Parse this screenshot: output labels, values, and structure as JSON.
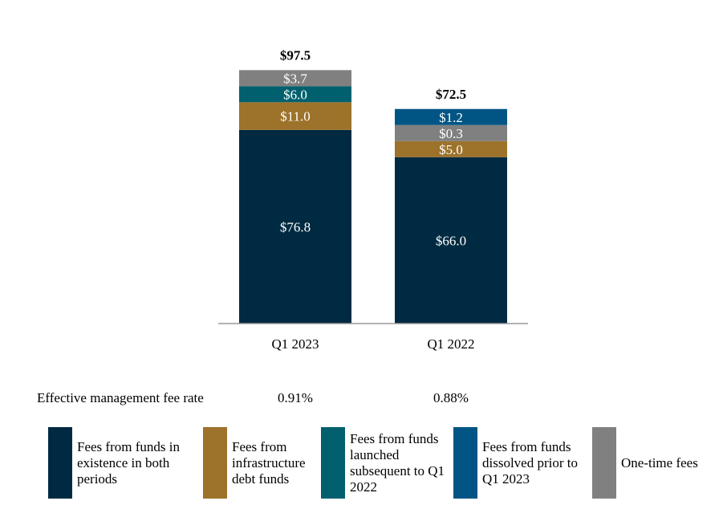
{
  "chart_data": {
    "type": "bar",
    "stacked": true,
    "categories": [
      "Q1 2023",
      "Q1 2022"
    ],
    "totals": [
      "$97.5",
      "$72.5"
    ],
    "series": [
      {
        "name": "Fees from funds in existence in both periods",
        "color": "#002a41",
        "values": [
          76.8,
          66.0
        ]
      },
      {
        "name": "Fees from infrastructure debt funds",
        "color": "#9d722a",
        "values": [
          11.0,
          5.0
        ]
      },
      {
        "name": "Fees from funds launched subsequent to Q1 2022",
        "color": "#00606e",
        "values": [
          6.0,
          0
        ]
      },
      {
        "name": "One-time fees",
        "color": "#808080",
        "values": [
          3.7,
          0.3
        ]
      },
      {
        "name": "Fees from funds dissolved prior to Q1 2023",
        "color": "#005584",
        "values": [
          0,
          1.2
        ]
      }
    ],
    "legend_order": [
      0,
      1,
      2,
      4,
      3
    ],
    "legend_placement": "bottom",
    "grid": false
  },
  "fee_rate": {
    "label": "Effective management fee rate",
    "values": [
      "0.91%",
      "0.88%"
    ]
  }
}
